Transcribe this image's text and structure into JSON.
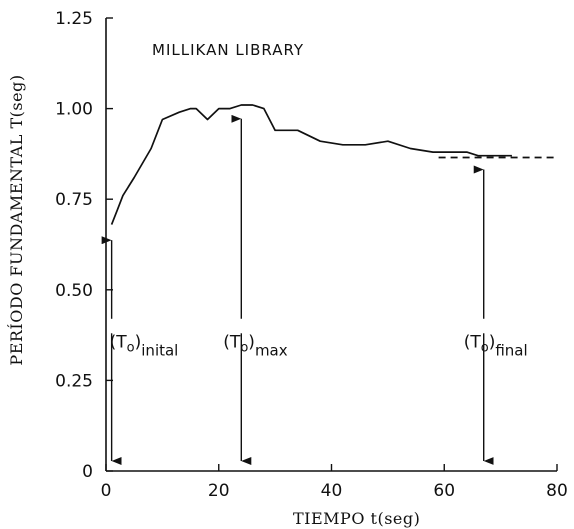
{
  "chart_data": {
    "type": "line",
    "title": "MILLIKAN LIBRARY",
    "xlabel": "TIEMPO t(seg)",
    "ylabel": "PERÍODO FUNDAMENTAL T(seg)",
    "xlim": [
      0,
      80
    ],
    "ylim": [
      0,
      1.25
    ],
    "xticks": [
      0,
      20,
      40,
      60,
      80
    ],
    "xtick_labels": [
      "0",
      "20",
      "40",
      "60",
      "80"
    ],
    "yticks": [
      0,
      0.25,
      0.5,
      0.75,
      1.0,
      1.25
    ],
    "ytick_labels": [
      "0",
      "0.25",
      "0.50",
      "0.75",
      "1.00",
      "1.25"
    ],
    "grid": false,
    "series": [
      {
        "x": [
          1,
          2,
          3,
          5,
          8,
          10,
          13,
          15,
          16,
          18,
          20,
          22,
          24,
          26,
          28,
          30,
          34,
          38,
          42,
          46,
          50,
          54,
          58,
          62,
          64,
          66,
          68,
          70,
          72
        ],
        "y": [
          0.68,
          0.72,
          0.76,
          0.81,
          0.89,
          0.97,
          0.99,
          1.0,
          1.0,
          0.97,
          1.0,
          1.0,
          1.01,
          1.01,
          1.0,
          0.94,
          0.94,
          0.91,
          0.9,
          0.9,
          0.91,
          0.89,
          0.88,
          0.88,
          0.88,
          0.87,
          0.87,
          0.87,
          0.87
        ],
        "style": "solid"
      },
      {
        "x": [
          59,
          80
        ],
        "y": [
          0.865,
          0.865
        ],
        "style": "dashed"
      }
    ],
    "annotations": [
      {
        "x": 1,
        "y_top": 0.67,
        "base": "(T",
        "sub0": "o",
        "close": ")",
        "sub1": "inital"
      },
      {
        "x": 24,
        "y_top": 1.005,
        "base": "(T",
        "sub0": "o",
        "close": ")",
        "sub1": "max"
      },
      {
        "x": 67,
        "y_top": 0.865,
        "base": "(T",
        "sub0": "o",
        "close": ")",
        "sub1": "final"
      }
    ]
  }
}
